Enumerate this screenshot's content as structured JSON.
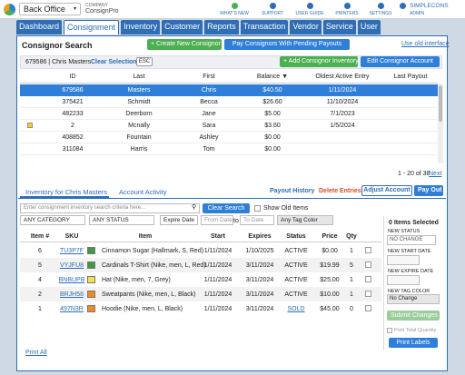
{
  "header": {
    "app_menu": "Back Office",
    "company_label": "COMPANY",
    "company_name": "ConsignPro",
    "nav": [
      "WHAT'S NEW",
      "SUPPORT",
      "USER GUIDE",
      "PRINTERS",
      "SETTINGS"
    ],
    "user": "SIMPLECONS",
    "role": "ADMIN"
  },
  "tabs": [
    "Dashboard",
    "Consignment",
    "Inventory",
    "Customer",
    "Reports",
    "Transaction",
    "Vendor",
    "Service",
    "User"
  ],
  "active_tab": 1,
  "consignor_search": {
    "title": "Consignor Search",
    "create_button": "+ Create New Consignor",
    "pay_button": "Pay Consignors With Pending Payouts",
    "old_interface_link": "Use old interface",
    "selected": {
      "label": "679586 | Chris Masters",
      "clear": "Clear Selection",
      "esc": "ESC",
      "add_inventory": "+ Add Consignor Inventory",
      "edit_account": "Edit Consignor Account"
    },
    "columns": [
      "ID",
      "Last",
      "First",
      "Balance ▼",
      "Oldest Active Entry",
      "Last Payout"
    ],
    "rows": [
      [
        679586,
        "Masters",
        "Chris",
        "$40.50",
        "1/11/2024",
        null
      ],
      [
        375421,
        "Schmidt",
        "Becca",
        "$26.60",
        "11/10/2024",
        null
      ],
      [
        482233,
        "Deerborn",
        "Jane",
        "$5.00",
        "7/1/2023",
        null
      ],
      [
        2,
        "Mcnally",
        "Sara",
        "$3.60",
        "1/5/2024",
        null
      ],
      [
        408852,
        "Fountain",
        "Ashley",
        "$0.00",
        null,
        null
      ],
      [
        311084,
        "Harris",
        "Tom",
        "$0.00",
        null,
        null
      ]
    ],
    "selected_row": 0,
    "flagged_row": 3,
    "pager": "1 - 20 of 38",
    "next": "Next"
  },
  "inventory": {
    "tabs": [
      "Inventory for Chris Masters",
      "Account Activity"
    ],
    "payout_history": "Payout History",
    "delete_entries": "Delete Entries",
    "adjust_account": "Adjust Account",
    "pay_out": "Pay Out",
    "search_placeholder": "Enter consignment inventory search criteria here...",
    "clear_search": "Clear Search",
    "show_old_items": "Show Old Items",
    "filters": {
      "category": "ANY CATEGORY",
      "status": "ANY STATUS",
      "date_field": "Expire Date",
      "from": "From Date",
      "to_sep": "to",
      "to": "To Date",
      "tag_color": "Any Tag Color"
    },
    "columns": [
      "Item #",
      "SKU",
      "Item",
      "Start",
      "Expires",
      "Status",
      "Price",
      "Qty"
    ],
    "rows": [
      {
        "item": 6,
        "sku": "TU3P7F",
        "tag_color": "#3f9a3f",
        "name": "Cinnamon Sugar (Hallmark, S, Red)",
        "start": "1/11/2024",
        "expires": "1/10/2025",
        "status": "ACTIVE",
        "price": "$0.00",
        "qty": 1
      },
      {
        "item": 5,
        "sku": "VYJFU8",
        "tag_color": "#3f9a3f",
        "name": "Cardinals T-Shirt (Nike, men, L, Red)",
        "start": "1/11/2024",
        "expires": "3/11/2024",
        "status": "ACTIVE",
        "price": "$19.99",
        "qty": 5
      },
      {
        "item": 4,
        "sku": "BNBUPB",
        "tag_color": "#f2e24a",
        "name": "Hat (Nike, men, 7, Grey)",
        "start": "1/11/2024",
        "expires": "3/11/2024",
        "status": "ACTIVE",
        "price": "$25.00",
        "qty": 1
      },
      {
        "item": 2,
        "sku": "BRJH58",
        "tag_color": "#f08a24",
        "name": "Sweatpants (Nike, men, L, Black)",
        "start": "1/11/2024",
        "expires": "3/11/2024",
        "status": "ACTIVE",
        "price": "$10.00",
        "qty": 1
      },
      {
        "item": 1,
        "sku": "497N3R",
        "tag_color": "#f08a24",
        "name": "Hoodie (Nike, men, L, Black)",
        "start": "1/11/2024",
        "expires": "3/11/2024",
        "status": "SOLD",
        "price": "$45.00",
        "qty": 0
      }
    ],
    "print_all": "Print All"
  },
  "bulk": {
    "selected": "0 Items Selected",
    "new_status_label": "NEW STATUS",
    "new_status": "NO CHANGE",
    "new_start_date_label": "NEW START DATE",
    "new_expire_date_label": "NEW EXPIRE DATE",
    "new_tag_color_label": "NEW TAG COLOR",
    "new_tag_color": "No Change",
    "submit": "Submit Changes",
    "print_total_quantity": "Print Total Quantity",
    "print_labels": "Print Labels"
  }
}
